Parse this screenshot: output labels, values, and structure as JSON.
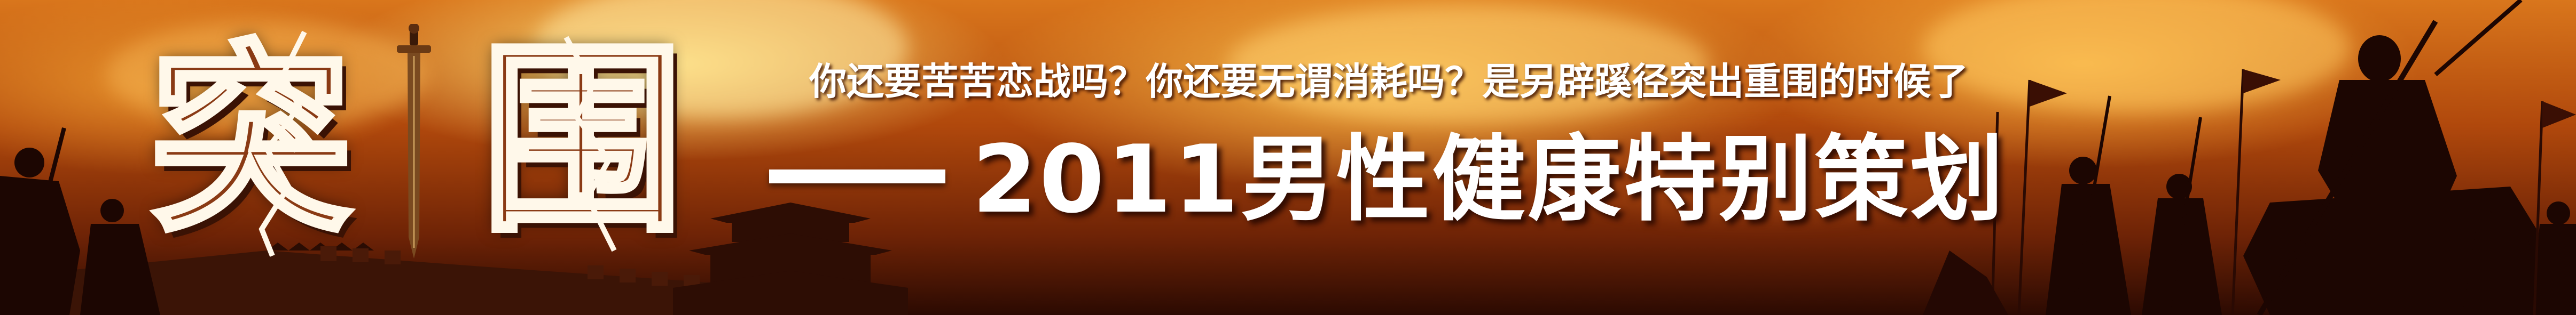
{
  "banner": {
    "title_char_1": "突",
    "title_char_2": "围",
    "dash": "——",
    "subtitle": "你还要苦苦恋战吗？你还要无谓消耗吗？是另辟蹊径突出重围的时候了",
    "main_title": "2011男性健康特别策划"
  },
  "colors": {
    "title_fill": "#8a3a14",
    "title_outline": "#fff8ea",
    "text": "#ffffff",
    "sky_light": "#ffd870",
    "sky_dark": "#6e2306",
    "silhouette": "#1c0602"
  },
  "icons": {
    "sword": "sword-icon",
    "pagoda": "pagoda-icon",
    "warrior": "warrior-icon"
  }
}
